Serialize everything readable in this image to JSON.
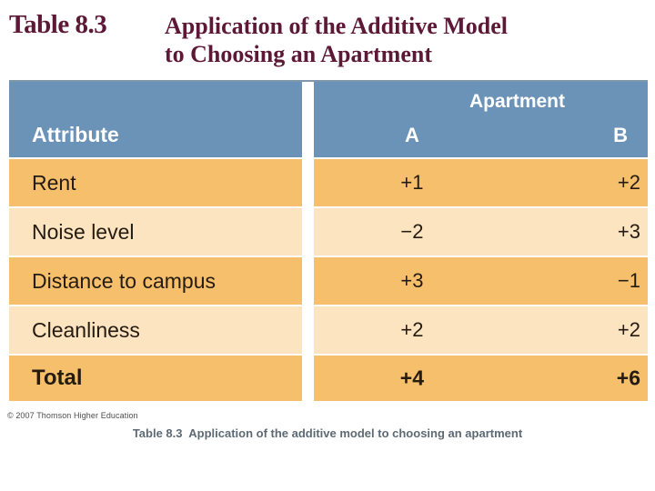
{
  "heading": {
    "table_label": "Table 8.3",
    "title_line1": "Application of the Additive Model",
    "title_line2": "to Choosing an Apartment"
  },
  "chart_data": {
    "type": "table",
    "title": "Table 8.3 Application of the Additive Model to Choosing an Apartment",
    "columns": {
      "attribute": "Attribute",
      "group": "Apartment",
      "a": "A",
      "b": "B"
    },
    "rows": [
      {
        "attribute": "Rent",
        "a": "+1",
        "b": "+2"
      },
      {
        "attribute": "Noise level",
        "a": "−2",
        "b": "+3"
      },
      {
        "attribute": "Distance to campus",
        "a": "+3",
        "b": "−1"
      },
      {
        "attribute": "Cleanliness",
        "a": "+2",
        "b": "+2"
      }
    ],
    "total": {
      "attribute": "Total",
      "a": "+4",
      "b": "+6"
    }
  },
  "footer": {
    "copyright": "© 2007 Thomson Higher Education",
    "caption": "Table 8.3  Application of the additive model to choosing an apartment"
  },
  "colors": {
    "header_blue": "#6b92b7",
    "row_orange": "#f6bf6c",
    "row_cream": "#fce4c1",
    "title_maroon": "#5c1836",
    "caption_gray": "#5d6a74"
  }
}
